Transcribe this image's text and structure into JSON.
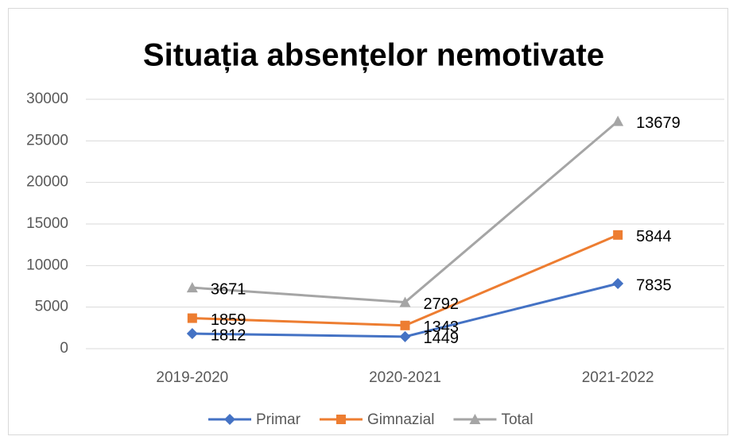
{
  "chart_data": {
    "type": "line",
    "stacked": true,
    "title": "Situația absențelor nemotivate",
    "categories": [
      "2019-2020",
      "2020-2021",
      "2021-2022"
    ],
    "series": [
      {
        "name": "Primar",
        "color": "#4472c4",
        "marker": "diamond",
        "values": [
          1812,
          1449,
          7835
        ]
      },
      {
        "name": "Gimnazial",
        "color": "#ed7d31",
        "marker": "square",
        "values": [
          1859,
          1343,
          5844
        ]
      },
      {
        "name": "Total",
        "color": "#a5a5a5",
        "marker": "triangle",
        "values": [
          3671,
          2792,
          13679
        ]
      }
    ],
    "ylim": [
      0,
      30000
    ],
    "yticks": [
      0,
      5000,
      10000,
      15000,
      20000,
      25000,
      30000
    ],
    "grid": true,
    "legend": "bottom"
  }
}
